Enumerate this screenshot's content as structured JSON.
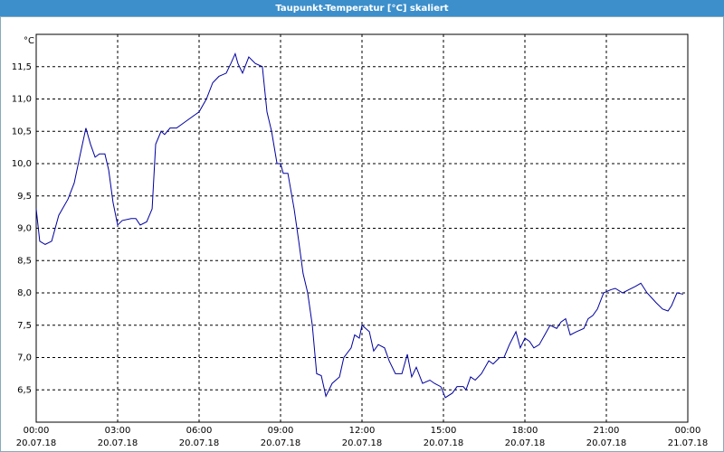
{
  "chart_data": {
    "type": "line",
    "title": "Taupunkt-Temperatur [°C] skaliert",
    "y_unit": "°C",
    "x": [
      0,
      0.13,
      0.33,
      0.57,
      0.83,
      1.17,
      1.4,
      1.6,
      1.83,
      2,
      2.17,
      2.33,
      2.53,
      2.67,
      2.83,
      3,
      3.17,
      3.5,
      3.67,
      3.83,
      4.07,
      4.27,
      4.4,
      4.6,
      4.73,
      4.93,
      5.17,
      5.5,
      5.83,
      6,
      6.27,
      6.5,
      6.73,
      7,
      7.17,
      7.33,
      7.43,
      7.6,
      7.83,
      8.07,
      8.33,
      8.5,
      8.67,
      8.87,
      9,
      9.1,
      9.27,
      9.5,
      9.67,
      9.83,
      10,
      10.17,
      10.33,
      10.5,
      10.67,
      10.9,
      11.17,
      11.33,
      11.6,
      11.73,
      11.9,
      12,
      12.27,
      12.43,
      12.6,
      12.83,
      13,
      13.23,
      13.47,
      13.67,
      13.83,
      14,
      14.23,
      14.5,
      14.67,
      14.9,
      15.07,
      15.33,
      15.5,
      15.73,
      15.83,
      16,
      16.17,
      16.4,
      16.67,
      16.83,
      17.07,
      17.23,
      17.43,
      17.67,
      17.83,
      18,
      18.17,
      18.33,
      18.53,
      18.73,
      18.93,
      19.17,
      19.33,
      19.5,
      19.67,
      19.9,
      20.17,
      20.33,
      20.5,
      20.67,
      20.9,
      21.17,
      21.33,
      21.6,
      21.83,
      22.07,
      22.27,
      22.5,
      22.83,
      23.07,
      23.27,
      23.4,
      23.6,
      23.83
    ],
    "series": [
      {
        "name": "Taupunkt",
        "color": "#0000a0",
        "values": [
          9.3,
          8.8,
          8.75,
          8.8,
          9.2,
          9.45,
          9.7,
          10.1,
          10.55,
          10.3,
          10.1,
          10.15,
          10.15,
          9.9,
          9.4,
          9.05,
          9.12,
          9.15,
          9.15,
          9.05,
          9.1,
          9.3,
          10.3,
          10.5,
          10.45,
          10.55,
          10.55,
          10.65,
          10.75,
          10.8,
          11.0,
          11.25,
          11.35,
          11.4,
          11.55,
          11.7,
          11.55,
          11.4,
          11.65,
          11.55,
          11.5,
          10.8,
          10.5,
          10.0,
          10.0,
          9.85,
          9.85,
          9.3,
          8.8,
          8.3,
          8.0,
          7.5,
          6.75,
          6.72,
          6.4,
          6.6,
          6.7,
          7.0,
          7.15,
          7.35,
          7.3,
          7.5,
          7.4,
          7.1,
          7.2,
          7.15,
          6.95,
          6.75,
          6.75,
          7.05,
          6.7,
          6.85,
          6.6,
          6.65,
          6.6,
          6.55,
          6.38,
          6.45,
          6.55,
          6.55,
          6.5,
          6.7,
          6.65,
          6.75,
          6.95,
          6.9,
          7.0,
          7.0,
          7.2,
          7.4,
          7.15,
          7.3,
          7.25,
          7.15,
          7.2,
          7.35,
          7.5,
          7.45,
          7.55,
          7.6,
          7.35,
          7.4,
          7.45,
          7.6,
          7.65,
          7.75,
          8.0,
          8.05,
          8.07,
          8.0,
          8.05,
          8.1,
          8.15,
          8.0,
          7.85,
          7.75,
          7.72,
          7.8,
          8.0,
          7.98
        ]
      }
    ],
    "xlim": [
      0,
      24
    ],
    "ylim": [
      6.0,
      12.0
    ],
    "xticks": [
      {
        "value": 0,
        "label": "00:00"
      },
      {
        "value": 3,
        "label": "03:00"
      },
      {
        "value": 6,
        "label": "06:00"
      },
      {
        "value": 9,
        "label": "09:00"
      },
      {
        "value": 12,
        "label": "12:00"
      },
      {
        "value": 15,
        "label": "15:00"
      },
      {
        "value": 18,
        "label": "18:00"
      },
      {
        "value": 21,
        "label": "21:00"
      },
      {
        "value": 24,
        "label": "00:00"
      }
    ],
    "xtick_dates": [
      "20.07.18",
      "20.07.18",
      "20.07.18",
      "20.07.18",
      "20.07.18",
      "20.07.18",
      "20.07.18",
      "20.07.18",
      "21.07.18"
    ],
    "yticks": [
      {
        "value": 6.5,
        "label": "6,5"
      },
      {
        "value": 7,
        "label": "7,0"
      },
      {
        "value": 7.5,
        "label": "7,5"
      },
      {
        "value": 8,
        "label": "8,0"
      },
      {
        "value": 8.5,
        "label": "8,5"
      },
      {
        "value": 9,
        "label": "9,0"
      },
      {
        "value": 9.5,
        "label": "9,5"
      },
      {
        "value": 10,
        "label": "10,0"
      },
      {
        "value": 10.5,
        "label": "10,5"
      },
      {
        "value": 11,
        "label": "11,0"
      },
      {
        "value": 11.5,
        "label": "11,5"
      }
    ],
    "grid": true
  }
}
